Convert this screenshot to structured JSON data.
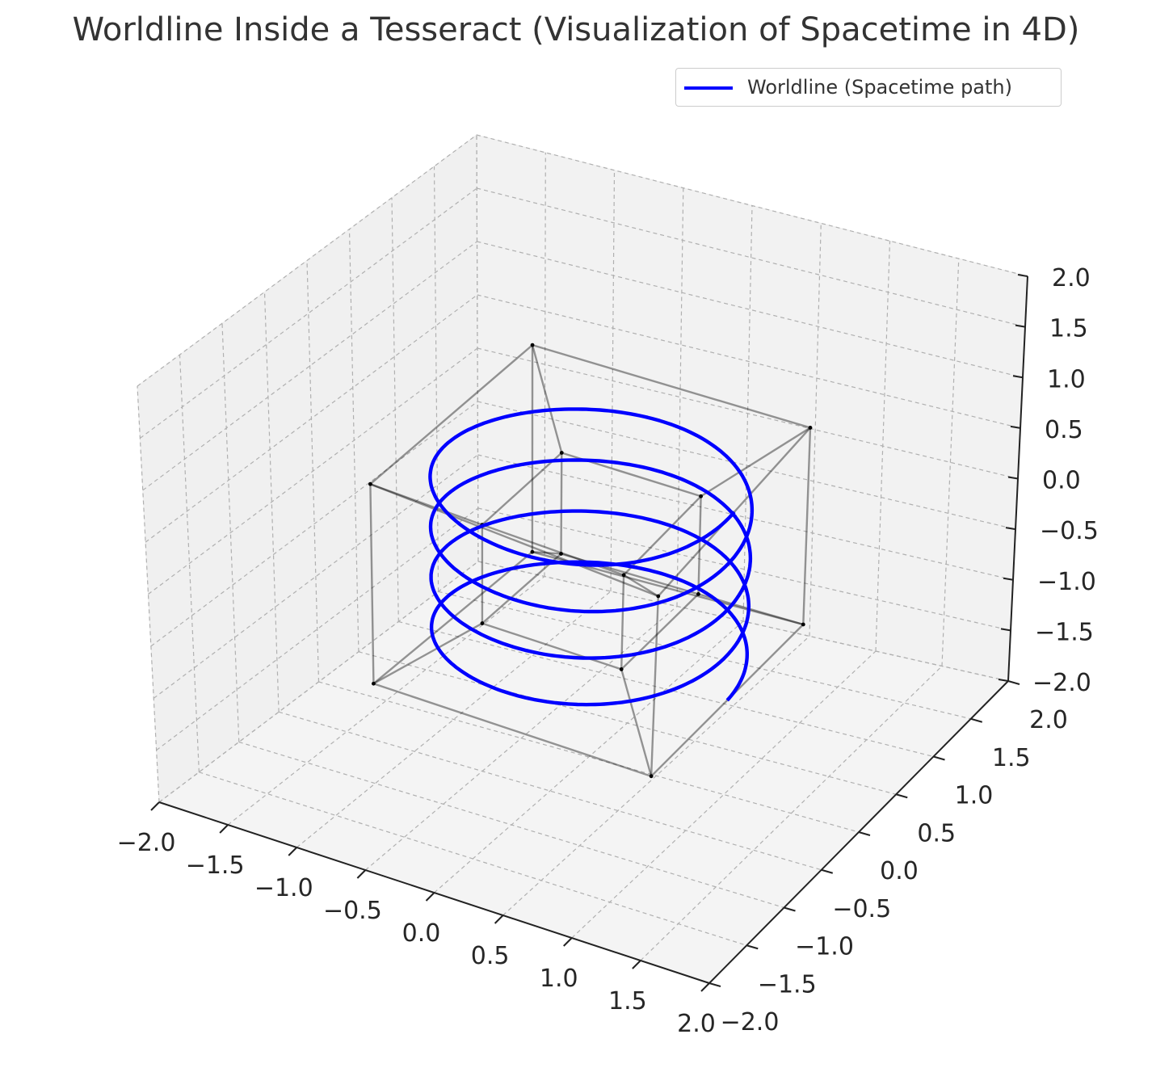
{
  "title": "Worldline Inside a Tesseract (Visualization of Spacetime in 4D)",
  "legend": {
    "label": "Worldline (Spacetime path)",
    "placement": "upper right"
  },
  "colors": {
    "worldline": "#0000ff",
    "tesseract": "#000000",
    "pane": "#f2f2f2",
    "grid": "#b0b0b0"
  },
  "chart_data": {
    "type": "line3d",
    "title": "Worldline Inside a Tesseract (Visualization of Spacetime in 4D)",
    "xlim": [
      -2,
      2
    ],
    "ylim": [
      -2,
      2
    ],
    "zlim": [
      -2,
      2
    ],
    "x_ticks": [
      "−2.0",
      "−1.5",
      "−1.0",
      "−0.5",
      "0.0",
      "0.5",
      "1.0",
      "1.5",
      "2.0"
    ],
    "y_ticks": [
      "−2.0",
      "−1.5",
      "−1.0",
      "−0.5",
      "0.0",
      "0.5",
      "1.0",
      "1.5",
      "2.0"
    ],
    "z_ticks": [
      "−2.0",
      "−1.5",
      "−1.0",
      "−0.5",
      "0.0",
      "0.5",
      "1.0",
      "1.5",
      "2.0"
    ],
    "grid": true,
    "series": [
      {
        "name": "Worldline (Spacetime path)",
        "kind": "helix",
        "x": "cos(t)",
        "y": "sin(t)",
        "z": "t / (4π) − 1",
        "t_range": [
          0,
          8
        ],
        "turns": 4
      },
      {
        "kind": "tesseract-projection",
        "vertices": [
          [
            -1,
            -1,
            -1
          ],
          [
            1,
            -1,
            -1
          ],
          [
            1,
            1,
            -1
          ],
          [
            -1,
            1,
            -1
          ],
          [
            -1,
            -1,
            1
          ],
          [
            1,
            -1,
            1
          ],
          [
            1,
            1,
            1
          ],
          [
            -1,
            1,
            1
          ],
          [
            -0.5,
            -0.5,
            -0.5
          ],
          [
            0.5,
            -0.5,
            -0.5
          ],
          [
            0.5,
            0.5,
            -0.5
          ],
          [
            -0.5,
            0.5,
            -0.5
          ],
          [
            -0.5,
            -0.5,
            0.5
          ],
          [
            0.5,
            -0.5,
            0.5
          ],
          [
            0.5,
            0.5,
            0.5
          ],
          [
            -0.5,
            0.5,
            0.5
          ]
        ]
      }
    ]
  }
}
